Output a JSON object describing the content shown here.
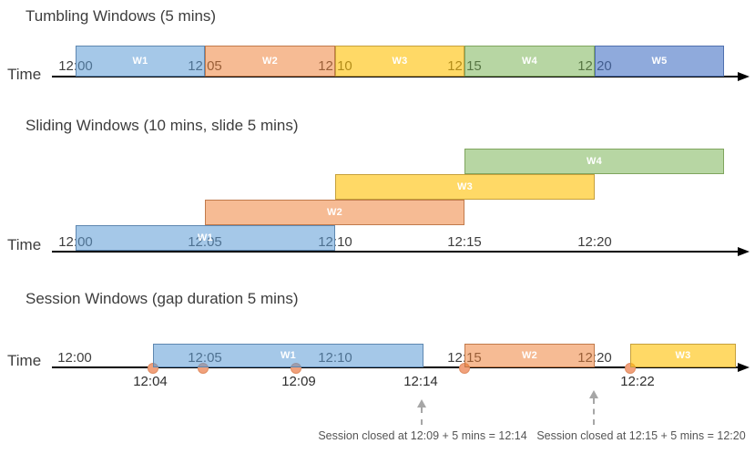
{
  "figure": {
    "background": "#ffffff"
  },
  "colors": {
    "title_text": "#3d3d3d",
    "axis_text": "#3d3d3d",
    "tick_text": "#3f3f3f",
    "event_label_text": "#2e2e2e",
    "annotation_text": "#555555",
    "annotation_arrow": "#a6a6a6",
    "timeline": "#000000",
    "window_label_text": "#ffffff",
    "event_dot_fill": "#f1a17c",
    "event_dot_border": "#e08d62",
    "fills": {
      "blue": "rgba(91,155,213,0.55)",
      "orange": "rgba(237,125,49,0.52)",
      "yellow": "rgba(255,192,0,0.60)",
      "green": "rgba(112,173,71,0.50)",
      "periwinkle": "rgba(68,114,196,0.60)"
    },
    "strokes": {
      "blue": "#5e87b0",
      "orange": "#c17a4b",
      "yellow": "#c6a03c",
      "green": "#7fa55e",
      "periwinkle": "#5070ae"
    }
  },
  "diagrams": [
    {
      "id": "tumbling",
      "title": "Tumbling Windows (5 mins)",
      "axis_label": "Time",
      "tick_labels": [
        "12:00",
        "12:05",
        "12:10",
        "12:15",
        "12:20"
      ],
      "windows": [
        {
          "label": "W1",
          "color": "blue",
          "start": "12:00",
          "end": "12:05"
        },
        {
          "label": "W2",
          "color": "orange",
          "start": "12:05",
          "end": "12:10"
        },
        {
          "label": "W3",
          "color": "yellow",
          "start": "12:10",
          "end": "12:15"
        },
        {
          "label": "W4",
          "color": "green",
          "start": "12:15",
          "end": "12:20"
        },
        {
          "label": "W5",
          "color": "periwinkle",
          "start": "12:20"
        }
      ]
    },
    {
      "id": "sliding",
      "title": "Sliding Windows (10 mins, slide 5 mins)",
      "axis_label": "Time",
      "tick_labels": [
        "12:00",
        "12:05",
        "12:10",
        "12:15",
        "12:20"
      ],
      "windows": [
        {
          "label": "W1",
          "color": "blue",
          "start": "12:00",
          "end": "12:10"
        },
        {
          "label": "W2",
          "color": "orange",
          "start": "12:05",
          "end": "12:15"
        },
        {
          "label": "W3",
          "color": "yellow",
          "start": "12:10",
          "end": "12:20"
        },
        {
          "label": "W4",
          "color": "green",
          "start": "12:15"
        }
      ]
    },
    {
      "id": "session",
      "title": "Session Windows (gap duration 5 mins)",
      "axis_label": "Time",
      "tick_labels": [
        "12:00",
        "12:05",
        "12:10",
        "12:15",
        "12:20"
      ],
      "windows": [
        {
          "label": "W1",
          "color": "blue",
          "start": "12:04",
          "end": "12:14"
        },
        {
          "label": "W2",
          "color": "orange",
          "start": "12:15",
          "end": "12:20"
        },
        {
          "label": "W3",
          "color": "yellow",
          "start": "12:22"
        }
      ],
      "event_labels": [
        "12:04",
        "12:09",
        "12:14",
        "12:22"
      ],
      "annotations": [
        "Session closed at 12:09 + 5 mins = 12:14",
        "Session closed at 12:15 + 5 mins = 12:20"
      ]
    }
  ]
}
